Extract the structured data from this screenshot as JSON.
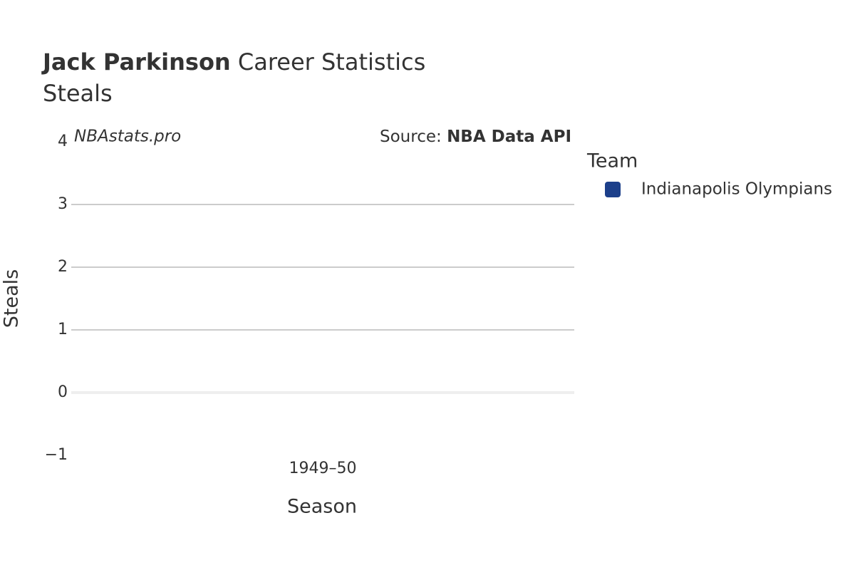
{
  "chart_data": {
    "type": "bar",
    "title": {
      "bold": "Jack Parkinson",
      "rest": "Career Statistics"
    },
    "subtitle": "Steals",
    "watermark": "NBAstats.pro",
    "source": {
      "prefix": "Source:",
      "name": "NBA Data API"
    },
    "x_label": "Season",
    "y_label": "Steals",
    "categories": [
      "1949–50"
    ],
    "legend_title": "Team",
    "series": [
      {
        "name": "Indianapolis Olympians",
        "color": "#1c3f8a",
        "values": [
          0
        ]
      }
    ],
    "ylim": [
      -1,
      4
    ],
    "yticks": [
      {
        "value": -1,
        "label": "−1"
      },
      0,
      1,
      2,
      3,
      4
    ],
    "grid": true
  }
}
